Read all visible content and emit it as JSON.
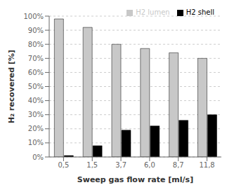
{
  "chart_data": {
    "type": "bar",
    "categories": [
      "0,5",
      "1,5",
      "3,7",
      "6,0",
      "8,7",
      "11,8"
    ],
    "series": [
      {
        "name": "H2 lumen",
        "color": "#c8c8c8",
        "values": [
          98,
          92,
          80,
          77,
          74,
          70
        ]
      },
      {
        "name": "H2 shell",
        "color": "#000000",
        "values": [
          1,
          8,
          19,
          22,
          26,
          30
        ]
      }
    ],
    "xlabel": "Sweep gas flow rate  [ml/s]",
    "ylabel": "H₂ recovered [%]",
    "ylim": [
      0,
      100
    ],
    "yticks": [
      {
        "value": 0,
        "label": "0%"
      },
      {
        "value": 10,
        "label": "10%"
      },
      {
        "value": 20,
        "label": "20%"
      },
      {
        "value": 30,
        "label": "30%"
      },
      {
        "value": 40,
        "label": "40%"
      },
      {
        "value": 50,
        "label": "50%"
      },
      {
        "value": 60,
        "label": "60%"
      },
      {
        "value": 70,
        "label": "70%"
      },
      {
        "value": 80,
        "label": "80%"
      },
      {
        "value": 90,
        "label": "90%"
      },
      {
        "value": 100,
        "label": "100%"
      }
    ],
    "grid": true,
    "legend": "upper right"
  }
}
